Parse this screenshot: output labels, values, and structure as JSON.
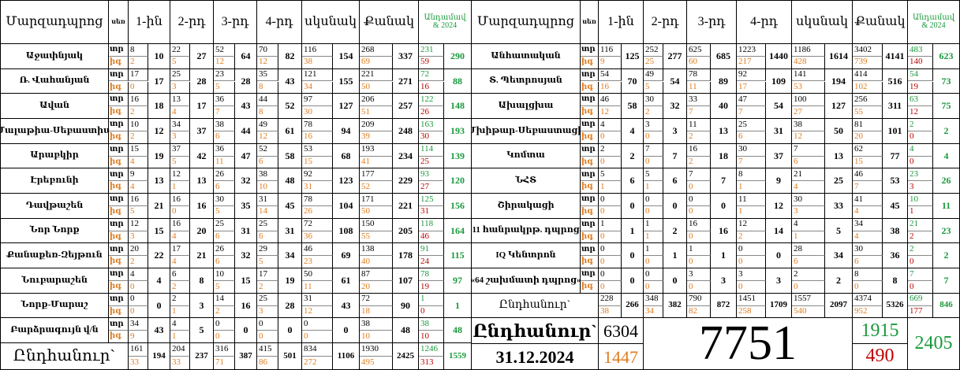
{
  "header": {
    "name": "Մարզադպրոց",
    "sex": "սեռ",
    "groups": [
      "1-ին",
      "2-րդ",
      "3-րդ",
      "4-րդ",
      "սկսնակ",
      "Քանակ"
    ],
    "membership": [
      "Անդամավ",
      "& 2024"
    ]
  },
  "sex_labels": [
    "տր",
    "իգ"
  ],
  "left": {
    "rows": [
      {
        "name": "Աջափնյակ",
        "cells": [
          [
            8,
            2,
            10
          ],
          [
            22,
            5,
            27
          ],
          [
            52,
            12,
            64
          ],
          [
            70,
            12,
            82
          ],
          [
            116,
            38,
            154
          ],
          [
            268,
            69,
            337
          ],
          [
            231,
            59,
            290
          ]
        ]
      },
      {
        "name": "Ռ. Վահանյան",
        "cells": [
          [
            17,
            0,
            17
          ],
          [
            25,
            3,
            28
          ],
          [
            23,
            5,
            28
          ],
          [
            35,
            8,
            43
          ],
          [
            121,
            34,
            155
          ],
          [
            221,
            50,
            271
          ],
          [
            72,
            16,
            88
          ]
        ]
      },
      {
        "name": "Ավան",
        "cells": [
          [
            16,
            2,
            18
          ],
          [
            13,
            4,
            17
          ],
          [
            36,
            7,
            43
          ],
          [
            44,
            8,
            52
          ],
          [
            97,
            30,
            127
          ],
          [
            206,
            51,
            257
          ],
          [
            122,
            26,
            148
          ]
        ]
      },
      {
        "name": "Մալաթիա-Սեբաստիա",
        "cells": [
          [
            10,
            2,
            12
          ],
          [
            34,
            3,
            37
          ],
          [
            38,
            6,
            44
          ],
          [
            49,
            12,
            61
          ],
          [
            78,
            16,
            94
          ],
          [
            209,
            39,
            248
          ],
          [
            163,
            30,
            193
          ]
        ]
      },
      {
        "name": "Արաբկիր",
        "cells": [
          [
            15,
            4,
            19
          ],
          [
            37,
            5,
            42
          ],
          [
            36,
            11,
            47
          ],
          [
            52,
            6,
            58
          ],
          [
            53,
            15,
            68
          ],
          [
            193,
            41,
            234
          ],
          [
            114,
            25,
            139
          ]
        ]
      },
      {
        "name": "Էրեբունի",
        "cells": [
          [
            9,
            4,
            13
          ],
          [
            12,
            1,
            13
          ],
          [
            26,
            6,
            32
          ],
          [
            38,
            10,
            48
          ],
          [
            92,
            31,
            123
          ],
          [
            177,
            52,
            229
          ],
          [
            93,
            27,
            120
          ]
        ]
      },
      {
        "name": "Դավթաշեն",
        "cells": [
          [
            16,
            5,
            21
          ],
          [
            16,
            0,
            16
          ],
          [
            30,
            5,
            35
          ],
          [
            31,
            14,
            45
          ],
          [
            78,
            26,
            104
          ],
          [
            171,
            50,
            221
          ],
          [
            125,
            31,
            156
          ]
        ]
      },
      {
        "name": "Նոր Նորք",
        "cells": [
          [
            12,
            3,
            15
          ],
          [
            16,
            4,
            20
          ],
          [
            25,
            6,
            31
          ],
          [
            25,
            6,
            31
          ],
          [
            72,
            36,
            108
          ],
          [
            150,
            55,
            205
          ],
          [
            118,
            46,
            164
          ]
        ]
      },
      {
        "name": "Քանաքեռ-Զեյթուն",
        "cells": [
          [
            20,
            2,
            22
          ],
          [
            17,
            4,
            21
          ],
          [
            26,
            6,
            32
          ],
          [
            29,
            5,
            34
          ],
          [
            46,
            23,
            69
          ],
          [
            138,
            40,
            178
          ],
          [
            91,
            24,
            115
          ]
        ]
      },
      {
        "name": "Նուբարաշեն",
        "cells": [
          [
            4,
            0,
            4
          ],
          [
            6,
            2,
            8
          ],
          [
            10,
            5,
            15
          ],
          [
            17,
            2,
            19
          ],
          [
            50,
            11,
            61
          ],
          [
            87,
            20,
            107
          ],
          [
            78,
            19,
            97
          ]
        ]
      },
      {
        "name": "Նորք-Մարաշ",
        "cells": [
          [
            0,
            0,
            0
          ],
          [
            2,
            1,
            3
          ],
          [
            14,
            2,
            16
          ],
          [
            25,
            3,
            28
          ],
          [
            31,
            12,
            43
          ],
          [
            72,
            18,
            90
          ],
          [
            1,
            0,
            1
          ]
        ]
      },
      {
        "name": "Բարձրագույն վ/ն",
        "cells": [
          [
            34,
            9,
            43
          ],
          [
            4,
            1,
            5
          ],
          [
            0,
            0,
            0
          ],
          [
            0,
            0,
            0
          ],
          [
            0,
            0,
            0
          ],
          [
            38,
            10,
            48
          ],
          [
            38,
            10,
            48
          ]
        ]
      }
    ],
    "total": {
      "name": "Ընդհանուր`",
      "cells": [
        [
          161,
          33,
          194
        ],
        [
          204,
          33,
          237
        ],
        [
          316,
          71,
          387
        ],
        [
          415,
          86,
          501
        ],
        [
          834,
          272,
          1106
        ],
        [
          1930,
          495,
          2425
        ],
        [
          1246,
          313,
          1559
        ]
      ]
    }
  },
  "right": {
    "rows": [
      {
        "name": "Անհատական",
        "cells": [
          [
            116,
            9,
            125
          ],
          [
            252,
            25,
            277
          ],
          [
            625,
            60,
            685
          ],
          [
            1223,
            217,
            1440
          ],
          [
            1186,
            428,
            1614
          ],
          [
            3402,
            739,
            4141
          ],
          [
            483,
            140,
            623
          ]
        ]
      },
      {
        "name": "Տ. Պետրոսյան",
        "cells": [
          [
            54,
            16,
            70
          ],
          [
            49,
            5,
            54
          ],
          [
            78,
            11,
            89
          ],
          [
            92,
            17,
            109
          ],
          [
            141,
            53,
            194
          ],
          [
            414,
            102,
            516
          ],
          [
            54,
            19,
            73
          ]
        ]
      },
      {
        "name": "Ախալցխա",
        "cells": [
          [
            46,
            12,
            58
          ],
          [
            30,
            2,
            32
          ],
          [
            33,
            7,
            40
          ],
          [
            47,
            7,
            54
          ],
          [
            100,
            27,
            127
          ],
          [
            256,
            55,
            311
          ],
          [
            63,
            12,
            75
          ]
        ]
      },
      {
        "name": "Մխիթար-Սեբաստացի",
        "cells": [
          [
            4,
            0,
            4
          ],
          [
            3,
            0,
            3
          ],
          [
            11,
            2,
            13
          ],
          [
            25,
            6,
            31
          ],
          [
            38,
            12,
            50
          ],
          [
            81,
            20,
            101
          ],
          [
            2,
            0,
            2
          ]
        ]
      },
      {
        "name": "Կոմտա",
        "cells": [
          [
            2,
            0,
            2
          ],
          [
            7,
            0,
            7
          ],
          [
            16,
            2,
            18
          ],
          [
            30,
            7,
            37
          ],
          [
            7,
            6,
            13
          ],
          [
            62,
            15,
            77
          ],
          [
            4,
            0,
            4
          ]
        ]
      },
      {
        "name": "ՆՀՏ",
        "cells": [
          [
            5,
            1,
            6
          ],
          [
            5,
            1,
            6
          ],
          [
            7,
            0,
            7
          ],
          [
            8,
            1,
            9
          ],
          [
            21,
            4,
            25
          ],
          [
            46,
            7,
            53
          ],
          [
            23,
            3,
            26
          ]
        ]
      },
      {
        "name": "Շիրակացի",
        "cells": [
          [
            0,
            0,
            0
          ],
          [
            0,
            0,
            0
          ],
          [
            0,
            0,
            0
          ],
          [
            11,
            1,
            12
          ],
          [
            30,
            3,
            33
          ],
          [
            41,
            4,
            45
          ],
          [
            10,
            1,
            11
          ]
        ]
      },
      {
        "name": "11 հանրակրթ. դպրոց",
        "cells": [
          [
            1,
            0,
            1
          ],
          [
            1,
            1,
            2
          ],
          [
            16,
            0,
            16
          ],
          [
            12,
            2,
            14
          ],
          [
            4,
            1,
            5
          ],
          [
            34,
            4,
            38
          ],
          [
            21,
            2,
            23
          ]
        ]
      },
      {
        "name": "IQ Կենտրոն",
        "cells": [
          [
            0,
            0,
            0
          ],
          [
            1,
            0,
            1
          ],
          [
            1,
            0,
            1
          ],
          [
            0,
            0,
            0
          ],
          [
            28,
            6,
            34
          ],
          [
            30,
            6,
            36
          ],
          [
            2,
            0,
            2
          ]
        ]
      },
      {
        "name": "«64 շախմատի դպրոց»",
        "cells": [
          [
            0,
            0,
            0
          ],
          [
            0,
            0,
            0
          ],
          [
            3,
            0,
            3
          ],
          [
            3,
            0,
            3
          ],
          [
            2,
            0,
            2
          ],
          [
            8,
            0,
            8
          ],
          [
            7,
            0,
            7
          ]
        ]
      }
    ],
    "total": {
      "name": "Ընդհանուր`",
      "cells": [
        [
          228,
          38,
          266
        ],
        [
          348,
          34,
          382
        ],
        [
          790,
          82,
          872
        ],
        [
          1451,
          258,
          1709
        ],
        [
          1557,
          540,
          2097
        ],
        [
          4374,
          952,
          5326
        ],
        [
          669,
          177,
          846
        ]
      ]
    }
  },
  "summary": {
    "label": "Ընդհանուր`",
    "date": "31.12.2024",
    "students_male": 6304,
    "students_female": 1447,
    "students_total": 7751,
    "members_male": 1915,
    "members_female": 490,
    "members_total": 2405
  }
}
